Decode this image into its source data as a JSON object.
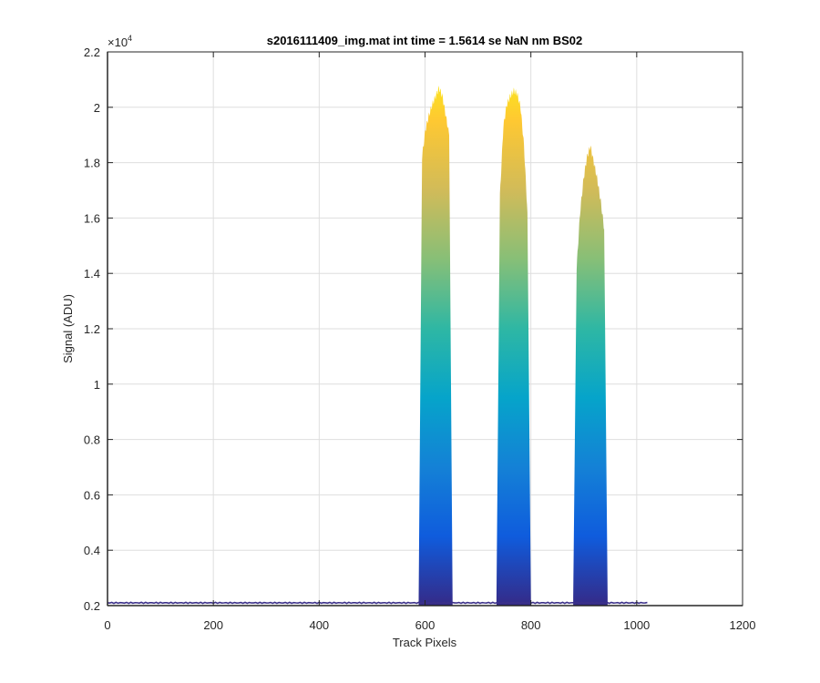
{
  "chart_data": {
    "type": "area",
    "title": "s2016111409_img.mat int time = 1.5614 se  NaN nm BS02",
    "xlabel": "Track Pixels",
    "ylabel": "Signal (ADU)",
    "y_exponent_base": "×10",
    "y_exponent_power": "4",
    "xlim": [
      0,
      1200
    ],
    "ylim": [
      0.2,
      2.2
    ],
    "y_scale_note": "values in units of 10^4 ADU",
    "x_ticks": [
      0,
      200,
      400,
      600,
      800,
      1000,
      1200
    ],
    "x_tick_labels": [
      "0",
      "200",
      "400",
      "600",
      "800",
      "1000",
      "1200"
    ],
    "y_ticks": [
      0.2,
      0.4,
      0.6,
      0.8,
      1.0,
      1.2,
      1.4,
      1.6,
      1.8,
      2.0,
      2.2
    ],
    "y_tick_labels": [
      "0.2",
      "0.4",
      "0.6",
      "0.8",
      "1",
      "1.2",
      "1.4",
      "1.6",
      "1.8",
      "2",
      "2.2"
    ],
    "grid": true,
    "legend": "none",
    "colormap": "parula",
    "baseline": {
      "x_start": 0,
      "x_end": 1020,
      "value": 0.21
    },
    "series": [
      {
        "x_start": 588,
        "x_end": 652,
        "values": [
          0.23,
          1.82,
          1.92,
          1.97,
          2.01,
          2.04,
          2.07,
          2.04,
          1.97,
          1.9,
          0.23
        ]
      },
      {
        "x_start": 735,
        "x_end": 800,
        "values": [
          0.23,
          1.68,
          1.93,
          2.01,
          2.04,
          2.06,
          2.05,
          2.0,
          1.86,
          1.62,
          0.23
        ]
      },
      {
        "x_start": 880,
        "x_end": 945,
        "values": [
          0.23,
          1.42,
          1.62,
          1.74,
          1.82,
          1.86,
          1.8,
          1.74,
          1.66,
          1.56,
          0.23
        ]
      }
    ],
    "colors": {
      "baseline_line": "#3b3089",
      "grid": "#dedede",
      "axis": "#262626",
      "colormap_stops": [
        "#352a87",
        "#0f5cdd",
        "#1481d6",
        "#06a4ca",
        "#2eb7a4",
        "#87bf77",
        "#d1bb59",
        "#fec832",
        "#f9fb0e"
      ]
    }
  }
}
